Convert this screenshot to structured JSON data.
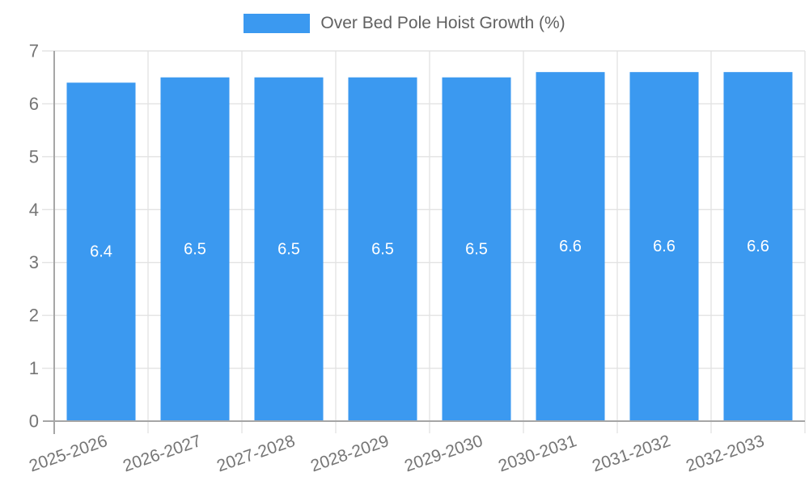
{
  "legend": {
    "label": "Over Bed Pole Hoist Growth (%)",
    "swatch_color": "#3B99F0"
  },
  "chart_data": {
    "type": "bar",
    "title": "",
    "xlabel": "",
    "ylabel": "",
    "categories": [
      "2025-2026",
      "2026-2027",
      "2027-2028",
      "2028-2029",
      "2029-2030",
      "2030-2031",
      "2031-2032",
      "2032-2033"
    ],
    "series": [
      {
        "name": "Over Bed Pole Hoist Growth (%)",
        "values": [
          6.4,
          6.5,
          6.5,
          6.5,
          6.5,
          6.6,
          6.6,
          6.6
        ],
        "bar_labels": [
          "6.4",
          "6.5",
          "6.5",
          "6.5",
          "6.5",
          "6.6",
          "6.6",
          "6.6"
        ],
        "color": "#3B99F0"
      }
    ],
    "ylim": [
      0,
      7
    ],
    "yticks": [
      0,
      1,
      2,
      3,
      4,
      5,
      6,
      7
    ],
    "grid": true,
    "legend_position": "top",
    "x_label_rotation_deg": -19
  },
  "colors": {
    "bar": "#3B99F0",
    "bar_label_text": "#ffffff",
    "gridline": "#e3e3e3",
    "axis_line": "#a6a6a6",
    "tick_label": "#757575",
    "legend_text": "#616161",
    "background": "#ffffff"
  }
}
